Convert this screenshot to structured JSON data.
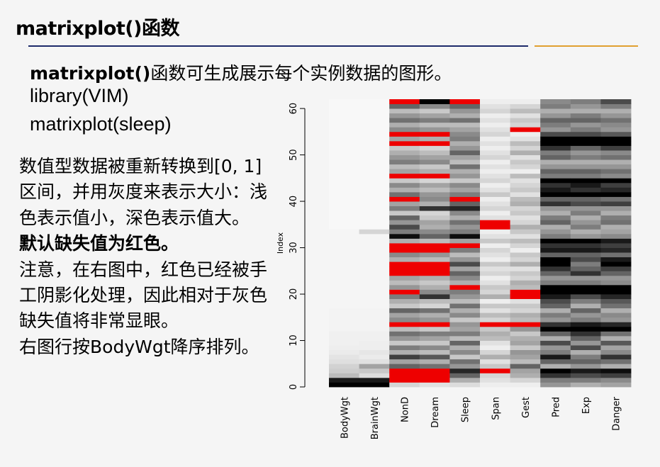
{
  "slide": {
    "title": "matrixplot()函数",
    "intro_code": "matrixplot()",
    "intro_text": "函数可生成展示每个实例数据的图形。",
    "code_lines": [
      "library(VIM)",
      "matrixplot(sleep)"
    ],
    "paragraphs": [
      {
        "text": "数值型数据被重新转换到[0, 1]区间，并用灰度来表示大小：浅色表示值小，深色表示值大。",
        "bold": false
      },
      {
        "text": "默认缺失值为红色。",
        "bold": true
      },
      {
        "text": "注意，在右图中，红色已经被手工阴影化处理，因此相对于灰色缺失值将非常显眼。",
        "bold": false
      },
      {
        "text": "右图行按BodyWgt降序排列。",
        "bold": false
      }
    ]
  },
  "colors": {
    "accent_rule": "#1e2a6a",
    "secondary_rule": "#e0a030",
    "missing": "#ee0000"
  },
  "chart_data": {
    "type": "heatmap",
    "variables": [
      "BodyWgt",
      "BrainWgt",
      "NonD",
      "Dream",
      "Sleep",
      "Span",
      "Gest",
      "Pred",
      "Exp",
      "Danger"
    ],
    "ylabel": "Index",
    "y_ticks": [
      0,
      10,
      20,
      30,
      40,
      50,
      60
    ],
    "ylim": [
      0,
      62
    ],
    "n_rows": 62,
    "missing_color": "red",
    "columns": [
      {
        "name": "BodyWgt",
        "values": [
          1,
          0.9,
          0.25,
          0.18,
          0.16,
          0.11,
          0.09,
          0.06,
          0.05,
          0.04,
          0.04,
          0.04,
          0.03,
          0.03,
          0.03,
          0.03,
          0.03,
          0.02,
          0.02,
          0.02,
          0.02,
          0.02,
          0.02,
          0.02,
          0.02,
          0.02,
          0.02,
          0.02,
          0.02,
          0.02,
          0.02,
          0.02,
          0.02,
          0.02,
          0.01,
          0.01,
          0.01,
          0.01,
          0.01,
          0.01,
          0.01,
          0.01,
          0.01,
          0.01,
          0.01,
          0.01,
          0.01,
          0.01,
          0.01,
          0.01,
          0.01,
          0.01,
          0.01,
          0.01,
          0.01,
          0.01,
          0.01,
          0.01,
          0.01,
          0.01,
          0.01,
          0.01
        ]
      },
      {
        "name": "BrainWgt",
        "values": [
          1,
          0.9,
          0.12,
          0.2,
          0.35,
          0.1,
          0.06,
          0.08,
          0.05,
          0.05,
          0.04,
          0.04,
          0.03,
          0.03,
          0.03,
          0.03,
          0.03,
          0.02,
          0.02,
          0.02,
          0.02,
          0.02,
          0.02,
          0.02,
          0.02,
          0.02,
          0.02,
          0.02,
          0.02,
          0.02,
          0.02,
          0.02,
          0.02,
          0.15,
          0.01,
          0.01,
          0.01,
          0.01,
          0.01,
          0.01,
          0.01,
          0.01,
          0.01,
          0.01,
          0.01,
          0.01,
          0.01,
          0.01,
          0.01,
          0.01,
          0.01,
          0.01,
          0.01,
          0.01,
          0.01,
          0.01,
          0.01,
          0.01,
          0.01,
          0.01,
          0.01,
          0.01
        ]
      },
      {
        "name": "NonD",
        "values": [
          0.15,
          null,
          null,
          null,
          0.6,
          0.35,
          0.75,
          0.3,
          0.5,
          0.2,
          0.4,
          0.55,
          0.25,
          null,
          0.45,
          0.35,
          0.6,
          0.2,
          0.3,
          0.5,
          null,
          0.4,
          0.25,
          0.35,
          null,
          null,
          null,
          0.3,
          0.45,
          null,
          null,
          0.3,
          0.95,
          0.5,
          0.7,
          0.4,
          0.6,
          0.2,
          0.5,
          0.35,
          null,
          0.55,
          0.3,
          0.45,
          0.2,
          null,
          0.35,
          0.25,
          0.5,
          0.4,
          0.3,
          0.2,
          null,
          0.35,
          null,
          0.45,
          0.3,
          0.55,
          0.4,
          0.25,
          0.6,
          null
        ]
      },
      {
        "name": "Dream",
        "values": [
          0.1,
          null,
          null,
          null,
          0.55,
          0.3,
          0.65,
          0.25,
          0.45,
          0.2,
          0.35,
          0.5,
          0.2,
          null,
          0.4,
          0.3,
          0.55,
          0.15,
          0.25,
          0.8,
          0.45,
          0.3,
          0.2,
          0.3,
          null,
          null,
          null,
          0.25,
          0.4,
          null,
          null,
          0.25,
          0.6,
          0.45,
          0.3,
          0.35,
          0.2,
          0.15,
          0.8,
          0.3,
          0.45,
          0.4,
          0.25,
          0.35,
          0.15,
          null,
          0.3,
          0.2,
          0.45,
          0.35,
          0.25,
          0.15,
          null,
          0.3,
          null,
          0.4,
          0.25,
          0.5,
          0.35,
          0.2,
          0.45,
          1
        ]
      },
      {
        "name": "Sleep",
        "values": [
          0.12,
          0.3,
          0.6,
          0.85,
          0.4,
          0.55,
          0.2,
          0.45,
          0.3,
          0.6,
          0.25,
          0.5,
          0.35,
          0.4,
          0.2,
          0.45,
          0.3,
          0.55,
          0.25,
          0.4,
          0.5,
          null,
          0.3,
          0.45,
          0.6,
          0.35,
          0.7,
          0.4,
          0.25,
          0.5,
          null,
          0.35,
          0.95,
          0.5,
          0.4,
          0.55,
          0.3,
          0.45,
          0.85,
          0.6,
          null,
          0.5,
          0.35,
          0.45,
          0.2,
          0.4,
          0.3,
          0.55,
          0.25,
          0.35,
          0.6,
          0.4,
          0.3,
          0.5,
          0.45,
          0.35,
          0.25,
          0.55,
          0.3,
          0.4,
          0.6,
          null
        ]
      },
      {
        "name": "Span",
        "values": [
          0.05,
          0.1,
          0.15,
          null,
          0.2,
          0.1,
          0.3,
          0.15,
          0.05,
          0.1,
          0.25,
          0.3,
          0.2,
          null,
          0.15,
          0.25,
          0.1,
          0.2,
          0.05,
          0.3,
          0.15,
          0.2,
          0.1,
          0.05,
          0.15,
          0.1,
          0.2,
          0.05,
          0.1,
          0.15,
          0.05,
          0.2,
          0.1,
          0.05,
          null,
          null,
          0.1,
          0.05,
          0.15,
          0.1,
          0.05,
          0.2,
          0.1,
          0.05,
          0.15,
          0.1,
          0.05,
          0.1,
          0.05,
          0.15,
          0.1,
          0.05,
          0.1,
          0.05,
          0.15,
          0.1,
          0.05,
          0.1,
          0.05,
          0.15,
          0.1,
          0.05
        ]
      },
      {
        "name": "Gest",
        "values": [
          0.05,
          0.15,
          0.3,
          0.35,
          0.6,
          0.25,
          0.35,
          0.4,
          0.2,
          0.35,
          0.3,
          0.2,
          0.4,
          null,
          0.25,
          0.3,
          0.15,
          0.2,
          0.1,
          null,
          null,
          0.25,
          0.3,
          0.15,
          0.2,
          0.1,
          0.3,
          0.15,
          0.2,
          0.05,
          0.15,
          0.25,
          0.1,
          0.2,
          0.3,
          0.15,
          0.1,
          0.2,
          0.15,
          0.3,
          0.25,
          0.1,
          0.2,
          0.15,
          0.1,
          0.25,
          0.05,
          0.15,
          0.2,
          0.1,
          0.3,
          0.15,
          0.25,
          0.1,
          0.05,
          null,
          0.15,
          0.2,
          0.1,
          0.25,
          0.15,
          0.05
        ]
      },
      {
        "name": "Pred",
        "values": [
          0.4,
          0.5,
          0.8,
          1,
          0.3,
          0.6,
          0.9,
          0.5,
          0.4,
          0.7,
          0.3,
          0.6,
          1,
          0.8,
          0.4,
          0.5,
          0.3,
          0.6,
          0.7,
          0.9,
          1,
          1,
          0.5,
          0.4,
          0.6,
          0.8,
          1,
          1,
          0.6,
          0.9,
          0.8,
          1,
          0.5,
          0.4,
          0.3,
          0.6,
          0.5,
          0.3,
          0.4,
          0.8,
          0.6,
          1,
          0.9,
          0.8,
          1,
          0.5,
          0.6,
          0.4,
          0.3,
          0.6,
          0.5,
          0.8,
          1,
          1,
          0.7,
          0.4,
          0.5,
          0.6,
          0.4,
          0.3,
          0.5,
          0.45
        ]
      },
      {
        "name": "Exp",
        "values": [
          0.3,
          0.5,
          0.7,
          0.9,
          0.4,
          0.6,
          0.5,
          0.3,
          0.7,
          0.4,
          0.6,
          0.8,
          1,
          0.9,
          0.5,
          0.4,
          0.6,
          0.3,
          0.5,
          0.7,
          1,
          1,
          0.5,
          0.4,
          0.8,
          0.6,
          0.5,
          0.7,
          0.6,
          0.9,
          0.8,
          1,
          0.4,
          0.3,
          0.5,
          0.4,
          0.3,
          0.5,
          0.4,
          0.7,
          0.6,
          1,
          0.8,
          0.9,
          1,
          0.5,
          0.6,
          0.4,
          0.3,
          0.5,
          0.4,
          0.6,
          1,
          1,
          0.7,
          0.5,
          0.4,
          0.6,
          0.5,
          0.3,
          0.4,
          0.5
        ]
      },
      {
        "name": "Danger",
        "values": [
          0.35,
          0.45,
          0.75,
          0.95,
          0.3,
          0.55,
          0.8,
          0.45,
          0.35,
          0.65,
          0.3,
          0.55,
          1,
          0.85,
          0.4,
          0.45,
          0.3,
          0.55,
          0.65,
          0.85,
          1,
          1,
          0.45,
          0.4,
          0.6,
          0.75,
          1,
          0.9,
          0.55,
          0.85,
          0.75,
          0.9,
          0.45,
          0.35,
          0.3,
          0.55,
          0.5,
          0.3,
          0.4,
          0.75,
          0.55,
          1,
          0.85,
          0.75,
          1,
          0.45,
          0.55,
          0.4,
          0.3,
          0.55,
          0.45,
          0.75,
          1,
          1,
          0.65,
          0.4,
          0.45,
          0.55,
          0.4,
          0.3,
          0.5,
          0.7
        ]
      }
    ]
  }
}
